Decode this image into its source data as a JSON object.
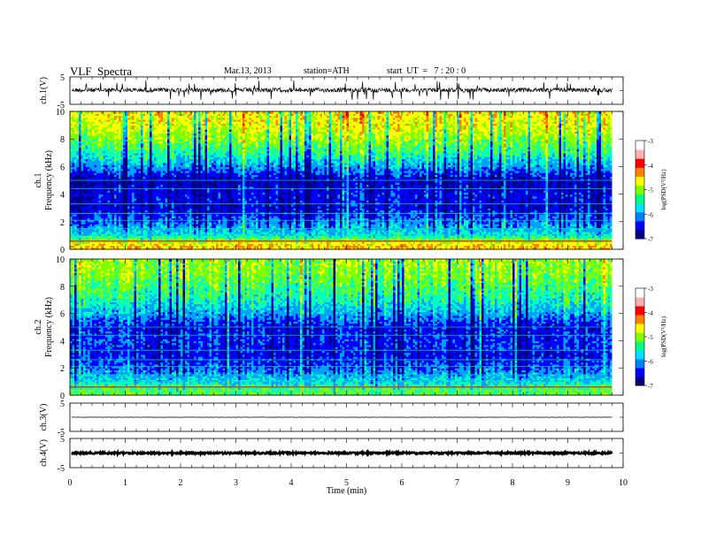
{
  "header": {
    "title": "VLF  Spectra",
    "date": "Mar.13, 2013",
    "station": "station=ATH",
    "start": "start  UT  =   7 : 20 : 0"
  },
  "colors": {
    "spectrogram_scale": [
      "#000080",
      "#0000ff",
      "#00a0ff",
      "#00ffc0",
      "#80ff00",
      "#ffff00",
      "#ff8000",
      "#ff0000",
      "#ffffff"
    ]
  },
  "chart_data": [
    {
      "type": "line",
      "panel": "waveform",
      "ylabel": "ch.1(V)",
      "yticks": [
        "5",
        "-5"
      ],
      "ylim": [
        -5,
        5
      ],
      "xlim": [
        0,
        10
      ],
      "data_end_min": 9.8,
      "description_values": {
        "baseline_v": 0.2,
        "noise_amplitude_v": 0.8
      }
    },
    {
      "type": "heatmap",
      "panel": "spectrogram",
      "channel_label": "ch.1",
      "ylabel": "Frequency  (kHz)",
      "yticks": [
        "0",
        "2",
        "4",
        "6",
        "8",
        "10"
      ],
      "ylim": [
        0,
        10
      ],
      "xlim": [
        0,
        10
      ],
      "data_end_min": 9.8,
      "colorbar": {
        "label": "log(PSD(V²/Hz)",
        "ticks": [
          "-3",
          "-4",
          "-5",
          "-6",
          "-7"
        ],
        "range": [
          -7,
          -3
        ]
      },
      "freq_profile_log_psd": [
        {
          "f_khz": 0.3,
          "level": -3.6
        },
        {
          "f_khz": 1.0,
          "level": -5.1
        },
        {
          "f_khz": 2.0,
          "level": -5.7
        },
        {
          "f_khz": 3.0,
          "level": -6.3
        },
        {
          "f_khz": 4.0,
          "level": -6.2
        },
        {
          "f_khz": 5.0,
          "level": -6.5
        },
        {
          "f_khz": 6.0,
          "level": -5.6
        },
        {
          "f_khz": 7.0,
          "level": -4.9
        },
        {
          "f_khz": 8.0,
          "level": -4.4
        },
        {
          "f_khz": 9.0,
          "level": -4.0
        },
        {
          "f_khz": 10.0,
          "level": -3.8
        }
      ]
    },
    {
      "type": "heatmap",
      "panel": "spectrogram",
      "channel_label": "ch.2",
      "ylabel": "Frequency  (kHz)",
      "yticks": [
        "0",
        "2",
        "4",
        "6",
        "8",
        "10"
      ],
      "ylim": [
        0,
        10
      ],
      "xlim": [
        0,
        10
      ],
      "data_end_min": 9.8,
      "colorbar": {
        "label": "log(PSD(V²/Hz)",
        "ticks": [
          "-3",
          "-4",
          "-5",
          "-6",
          "-7"
        ],
        "range": [
          -7,
          -3
        ]
      },
      "freq_profile_log_psd": [
        {
          "f_khz": 0.3,
          "level": -4.6
        },
        {
          "f_khz": 1.0,
          "level": -5.2
        },
        {
          "f_khz": 2.0,
          "level": -5.8
        },
        {
          "f_khz": 3.0,
          "level": -6.2
        },
        {
          "f_khz": 4.0,
          "level": -6.0
        },
        {
          "f_khz": 5.0,
          "level": -6.2
        },
        {
          "f_khz": 6.0,
          "level": -5.5
        },
        {
          "f_khz": 7.0,
          "level": -5.0
        },
        {
          "f_khz": 8.0,
          "level": -4.7
        },
        {
          "f_khz": 9.0,
          "level": -4.4
        },
        {
          "f_khz": 10.0,
          "level": -4.3
        }
      ]
    },
    {
      "type": "line",
      "panel": "waveform",
      "ylabel": "ch.3(V)",
      "yticks": [
        "5",
        "-5"
      ],
      "ylim": [
        -5,
        5
      ],
      "xlim": [
        0,
        10
      ],
      "data_end_min": 9.8,
      "description_values": {
        "baseline_v": 0.0,
        "noise_amplitude_v": 0.05
      }
    },
    {
      "type": "line",
      "panel": "waveform",
      "ylabel": "ch.4(V)",
      "yticks": [
        "5",
        "-5"
      ],
      "ylim": [
        -5,
        5
      ],
      "xlim": [
        0,
        10
      ],
      "data_end_min": 9.8,
      "xlabel": "Time  (min)",
      "xticks": [
        "0",
        "1",
        "2",
        "3",
        "4",
        "5",
        "6",
        "7",
        "8",
        "9",
        "10"
      ],
      "description_values": {
        "baseline_v": 0.0,
        "noise_amplitude_v": 0.3
      }
    }
  ]
}
